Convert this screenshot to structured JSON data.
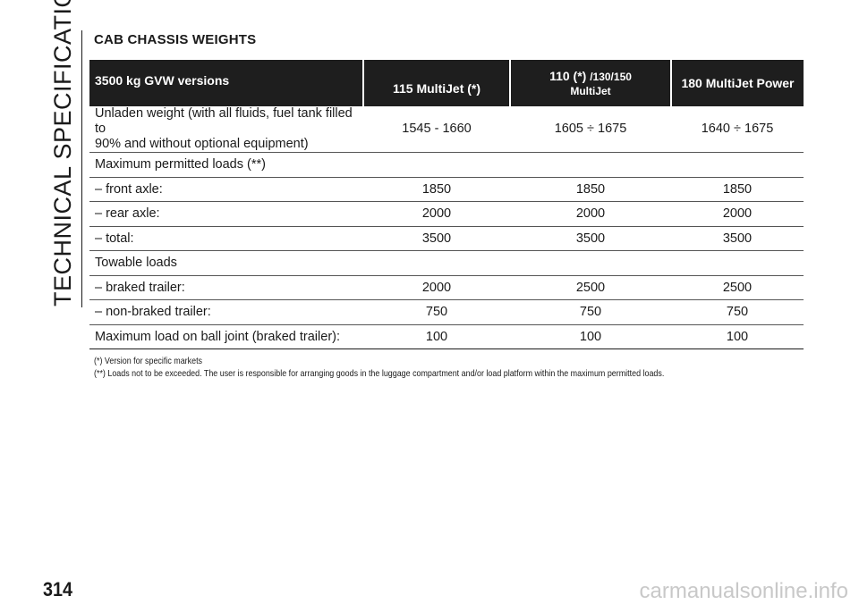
{
  "side_tab": "TECHNICAL SPECIFICATIONS",
  "section_title": "CAB CHASSIS WEIGHTS",
  "table": {
    "headers": {
      "col1": "3500 kg GVW versions",
      "col2": "115 MultiJet (*)",
      "col3_main": "110 (*)",
      "col3_sub": "/130/150",
      "col3_line2": "MultiJet",
      "col4": "180 MultiJet Power"
    },
    "rows": [
      {
        "label_line1": "Unladen weight (with all fluids, fuel tank filled to",
        "label_line2": "90% and without optional equipment)",
        "values": [
          "1545 - 1660",
          "1605 ÷ 1675",
          "1640 ÷ 1675"
        ]
      },
      {
        "label": "Maximum permitted loads (**)",
        "values": [
          "",
          "",
          ""
        ]
      },
      {
        "label": "– front axle:",
        "values": [
          "1850",
          "1850",
          "1850"
        ]
      },
      {
        "label": "– rear axle:",
        "values": [
          "2000",
          "2000",
          "2000"
        ]
      },
      {
        "label": "– total:",
        "values": [
          "3500",
          "3500",
          "3500"
        ]
      },
      {
        "label": "Towable loads",
        "values": [
          "",
          "",
          ""
        ]
      },
      {
        "label": "– braked trailer:",
        "values": [
          "2000",
          "2500",
          "2500"
        ]
      },
      {
        "label": "– non-braked trailer:",
        "values": [
          "750",
          "750",
          "750"
        ]
      },
      {
        "label": "Maximum load on ball joint (braked trailer):",
        "values": [
          "100",
          "100",
          "100"
        ]
      }
    ]
  },
  "notes": [
    "(*) Version for specific markets",
    "(**) Loads not to be exceeded. The user is responsible for arranging goods in the luggage compartment and/or load platform within the maximum permitted loads."
  ],
  "page_number": "314",
  "watermark": "carmanualsonline.info"
}
